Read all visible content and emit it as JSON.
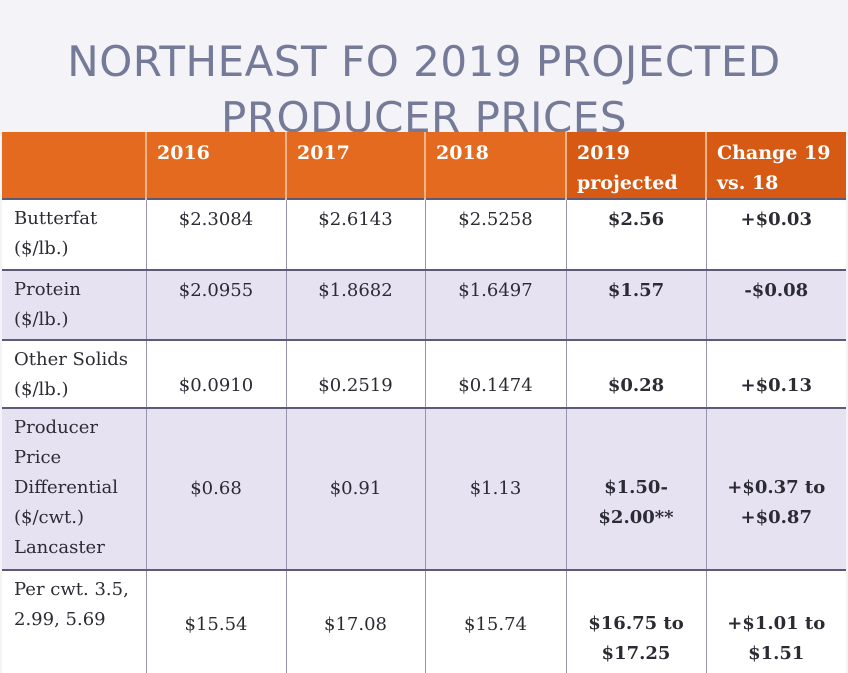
{
  "title": {
    "line1": "NORTHEAST FO 2019 PROJECTED",
    "line2": "PRODUCER PRICES"
  },
  "table": {
    "headers": {
      "label": "",
      "y2016": "2016",
      "y2017": "2017",
      "y2018": "2018",
      "y2019_line1": "2019",
      "y2019_line2": "projected",
      "change_line1": "Change 19",
      "change_line2": "vs. 18"
    },
    "rows": {
      "butterfat": {
        "label_line1": "Butterfat",
        "label_line2": "($/lb.)",
        "v2016": "$2.3084",
        "v2017": "$2.6143",
        "v2018": "$2.5258",
        "v2019": "$2.56",
        "change": "+$0.03"
      },
      "protein": {
        "label_line1": "Protein",
        "label_line2": "($/lb.)",
        "v2016": "$2.0955",
        "v2017": "$1.8682",
        "v2018": "$1.6497",
        "v2019": "$1.57",
        "change": "-$0.08"
      },
      "other_solids": {
        "label_line1": "Other Solids",
        "label_line2": "($/lb.)",
        "v2016": "$0.0910",
        "v2017": "$0.2519",
        "v2018": "$0.1474",
        "v2019": "$0.28",
        "change": "+$0.13"
      },
      "ppd": {
        "label_line1": "Producer",
        "label_line2": "Price",
        "label_line3": "Differential",
        "label_line4": "($/cwt.)",
        "label_line5": "Lancaster",
        "v2016": "$0.68",
        "v2017": "$0.91",
        "v2018": "$1.13",
        "v2019_line1": "$1.50-",
        "v2019_line2": "$2.00**",
        "change_line1": "+$0.37 to",
        "change_line2": "+$0.87"
      },
      "per_cwt": {
        "label_line1": "Per cwt. 3.5,",
        "label_line2": "2.99, 5.69",
        "v2016": "$15.54",
        "v2017": "$17.08",
        "v2018": "$15.74",
        "v2019_line1": "$16.75 to",
        "v2019_line2": "$17.25",
        "change_line1": "+$1.01 to",
        "change_line2": "$1.51"
      }
    }
  }
}
